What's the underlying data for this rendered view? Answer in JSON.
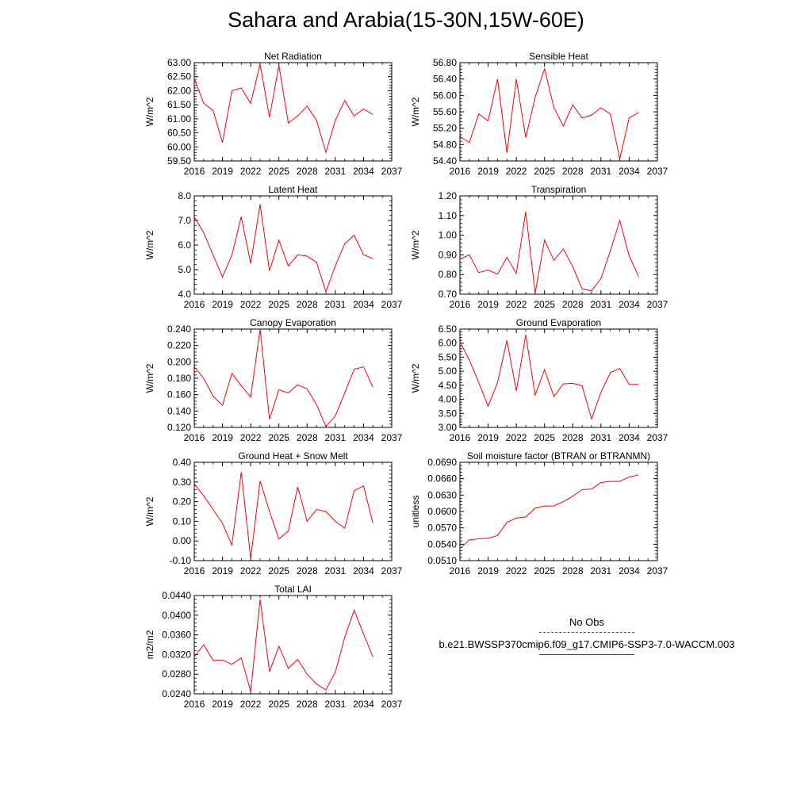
{
  "figure_title": "Sahara and Arabia(15-30N,15W-60E)",
  "legend": {
    "items": [
      {
        "label": "No Obs",
        "style": "dashed",
        "color": "#3b4ea8"
      },
      {
        "label": "b.e21.BWSSP370cmip6.f09_g17.CMIP6-SSP3-7.0-WACCM.003",
        "style": "solid",
        "color": "#ff0000"
      }
    ]
  },
  "chart_data": [
    {
      "type": "line",
      "title": "Net Radiation",
      "ylabel": "W/m^2",
      "xlim": [
        2016,
        2037
      ],
      "xticks": [
        "2016",
        "2019",
        "2022",
        "2025",
        "2028",
        "2031",
        "2034",
        "2037"
      ],
      "ylim": [
        59.5,
        63.0
      ],
      "yticks": [
        "59.50",
        "60.00",
        "60.50",
        "61.00",
        "61.50",
        "62.00",
        "62.50",
        "63.00"
      ],
      "x": [
        2016,
        2017,
        2018,
        2019,
        2020,
        2021,
        2022,
        2023,
        2024,
        2025,
        2026,
        2027,
        2028,
        2029,
        2030,
        2031,
        2032,
        2033,
        2034,
        2035
      ],
      "series": [
        {
          "color": "#ff0000",
          "values": [
            62.45,
            61.55,
            61.3,
            60.15,
            62.0,
            62.1,
            61.55,
            62.95,
            61.05,
            62.9,
            60.85,
            61.1,
            61.45,
            60.95,
            59.8,
            60.95,
            61.65,
            61.1,
            61.35,
            61.15
          ]
        }
      ]
    },
    {
      "type": "line",
      "title": "Sensible Heat",
      "ylabel": "W/m^2",
      "xlim": [
        2016,
        2037
      ],
      "xticks": [
        "2016",
        "2019",
        "2022",
        "2025",
        "2028",
        "2031",
        "2034",
        "2037"
      ],
      "ylim": [
        54.4,
        56.8
      ],
      "yticks": [
        "54.40",
        "54.80",
        "55.20",
        "55.60",
        "56.00",
        "56.40",
        "56.80"
      ],
      "x": [
        2016,
        2017,
        2018,
        2019,
        2020,
        2021,
        2022,
        2023,
        2024,
        2025,
        2026,
        2027,
        2028,
        2029,
        2030,
        2031,
        2032,
        2033,
        2034,
        2035
      ],
      "series": [
        {
          "color": "#ff0000",
          "values": [
            55.0,
            54.85,
            55.55,
            55.38,
            56.4,
            54.6,
            56.4,
            54.97,
            55.95,
            56.65,
            55.7,
            55.25,
            55.77,
            55.45,
            55.52,
            55.7,
            55.55,
            54.45,
            55.45,
            55.58
          ]
        }
      ]
    },
    {
      "type": "line",
      "title": "Latent Heat",
      "ylabel": "W/m^2",
      "xlim": [
        2016,
        2037
      ],
      "xticks": [
        "2016",
        "2019",
        "2022",
        "2025",
        "2028",
        "2031",
        "2034",
        "2037"
      ],
      "ylim": [
        4.0,
        8.0
      ],
      "yticks": [
        "4.0",
        "5.0",
        "6.0",
        "7.0",
        "8.0"
      ],
      "x": [
        2016,
        2017,
        2018,
        2019,
        2020,
        2021,
        2022,
        2023,
        2024,
        2025,
        2026,
        2027,
        2028,
        2029,
        2030,
        2031,
        2032,
        2033,
        2034,
        2035
      ],
      "series": [
        {
          "color": "#ff0000",
          "values": [
            7.15,
            6.5,
            5.6,
            4.7,
            5.6,
            7.15,
            5.25,
            7.65,
            4.95,
            6.2,
            5.15,
            5.6,
            5.55,
            5.3,
            4.1,
            5.15,
            6.05,
            6.4,
            5.6,
            5.45
          ]
        }
      ]
    },
    {
      "type": "line",
      "title": "Transpiration",
      "ylabel": "W/m^2",
      "xlim": [
        2016,
        2037
      ],
      "xticks": [
        "2016",
        "2019",
        "2022",
        "2025",
        "2028",
        "2031",
        "2034",
        "2037"
      ],
      "ylim": [
        0.7,
        1.2
      ],
      "yticks": [
        "0.70",
        "0.80",
        "0.90",
        "1.00",
        "1.10",
        "1.20"
      ],
      "x": [
        2016,
        2017,
        2018,
        2019,
        2020,
        2021,
        2022,
        2023,
        2024,
        2025,
        2026,
        2027,
        2028,
        2029,
        2030,
        2031,
        2032,
        2033,
        2034,
        2035
      ],
      "series": [
        {
          "color": "#ff0000",
          "values": [
            0.878,
            0.9,
            0.81,
            0.823,
            0.802,
            0.887,
            0.805,
            1.12,
            0.705,
            0.975,
            0.872,
            0.93,
            0.84,
            0.727,
            0.717,
            0.78,
            0.92,
            1.075,
            0.895,
            0.79
          ]
        }
      ]
    },
    {
      "type": "line",
      "title": "Canopy Evaporation",
      "ylabel": "W/m^2",
      "xlim": [
        2016,
        2037
      ],
      "xticks": [
        "2016",
        "2019",
        "2022",
        "2025",
        "2028",
        "2031",
        "2034",
        "2037"
      ],
      "ylim": [
        0.12,
        0.24
      ],
      "yticks": [
        "0.120",
        "0.140",
        "0.160",
        "0.180",
        "0.200",
        "0.220",
        "0.240"
      ],
      "x": [
        2016,
        2017,
        2018,
        2019,
        2020,
        2021,
        2022,
        2023,
        2024,
        2025,
        2026,
        2027,
        2028,
        2029,
        2030,
        2031,
        2032,
        2033,
        2034,
        2035
      ],
      "series": [
        {
          "color": "#ff0000",
          "values": [
            0.194,
            0.18,
            0.158,
            0.147,
            0.186,
            0.171,
            0.157,
            0.24,
            0.13,
            0.166,
            0.162,
            0.172,
            0.167,
            0.148,
            0.121,
            0.134,
            0.162,
            0.191,
            0.194,
            0.169
          ]
        }
      ]
    },
    {
      "type": "line",
      "title": "Ground Evaporation",
      "ylabel": "W/m^2",
      "xlim": [
        2016,
        2037
      ],
      "xticks": [
        "2016",
        "2019",
        "2022",
        "2025",
        "2028",
        "2031",
        "2034",
        "2037"
      ],
      "ylim": [
        3.0,
        6.5
      ],
      "yticks": [
        "3.00",
        "3.50",
        "4.00",
        "4.50",
        "5.00",
        "5.50",
        "6.00",
        "6.50"
      ],
      "x": [
        2016,
        2017,
        2018,
        2019,
        2020,
        2021,
        2022,
        2023,
        2024,
        2025,
        2026,
        2027,
        2028,
        2029,
        2030,
        2031,
        2032,
        2033,
        2034,
        2035
      ],
      "series": [
        {
          "color": "#ff0000",
          "values": [
            6.05,
            5.4,
            4.6,
            3.75,
            4.6,
            6.1,
            4.3,
            6.3,
            4.15,
            5.05,
            4.1,
            4.55,
            4.57,
            4.48,
            3.3,
            4.25,
            4.95,
            5.1,
            4.53,
            4.53
          ]
        }
      ]
    },
    {
      "type": "line",
      "title": "Ground Heat + Snow Melt",
      "ylabel": "W/m^2",
      "xlim": [
        2016,
        2037
      ],
      "xticks": [
        "2016",
        "2019",
        "2022",
        "2025",
        "2028",
        "2031",
        "2034",
        "2037"
      ],
      "ylim": [
        -0.1,
        0.4
      ],
      "yticks": [
        "-0.10",
        "0.00",
        "0.10",
        "0.20",
        "0.30",
        "0.40"
      ],
      "x": [
        2016,
        2017,
        2018,
        2019,
        2020,
        2021,
        2022,
        2023,
        2024,
        2025,
        2026,
        2027,
        2028,
        2029,
        2030,
        2031,
        2032,
        2033,
        2034,
        2035
      ],
      "series": [
        {
          "color": "#ff0000",
          "values": [
            0.29,
            0.23,
            0.16,
            0.09,
            -0.02,
            0.35,
            -0.09,
            0.305,
            0.15,
            0.01,
            0.05,
            0.275,
            0.1,
            0.16,
            0.15,
            0.1,
            0.065,
            0.255,
            0.28,
            0.09
          ]
        }
      ]
    },
    {
      "type": "line",
      "title": "Soil moisture factor (BTRAN or BTRANMN)",
      "ylabel": "unitless",
      "xlim": [
        2016,
        2037
      ],
      "xticks": [
        "2016",
        "2019",
        "2022",
        "2025",
        "2028",
        "2031",
        "2034",
        "2037"
      ],
      "ylim": [
        0.051,
        0.069
      ],
      "yticks": [
        "0.0510",
        "0.0540",
        "0.0570",
        "0.0600",
        "0.0630",
        "0.0660",
        "0.0690"
      ],
      "x": [
        2016,
        2017,
        2018,
        2019,
        2020,
        2021,
        2022,
        2023,
        2024,
        2025,
        2026,
        2027,
        2028,
        2029,
        2030,
        2031,
        2032,
        2033,
        2034,
        2035
      ],
      "series": [
        {
          "color": "#ff0000",
          "values": [
            0.0532,
            0.0548,
            0.055,
            0.0551,
            0.0556,
            0.058,
            0.0588,
            0.059,
            0.0606,
            0.061,
            0.061,
            0.0618,
            0.0628,
            0.064,
            0.0641,
            0.0653,
            0.0655,
            0.0655,
            0.0663,
            0.0667
          ]
        }
      ]
    },
    {
      "type": "line",
      "title": "Total LAI",
      "ylabel": "m2/m2",
      "xlim": [
        2016,
        2037
      ],
      "xticks": [
        "2016",
        "2019",
        "2022",
        "2025",
        "2028",
        "2031",
        "2034",
        "2037"
      ],
      "ylim": [
        0.024,
        0.044
      ],
      "yticks": [
        "0.0240",
        "0.0280",
        "0.0320",
        "0.0360",
        "0.0400",
        "0.0440"
      ],
      "x": [
        2016,
        2017,
        2018,
        2019,
        2020,
        2021,
        2022,
        2023,
        2024,
        2025,
        2026,
        2027,
        2028,
        2029,
        2030,
        2031,
        2032,
        2033,
        2034,
        2035
      ],
      "series": [
        {
          "color": "#ff0000",
          "values": [
            0.0315,
            0.034,
            0.0308,
            0.0309,
            0.03,
            0.0313,
            0.0245,
            0.0432,
            0.0285,
            0.0337,
            0.0292,
            0.031,
            0.028,
            0.026,
            0.0248,
            0.0284,
            0.0355,
            0.041,
            0.0362,
            0.0315
          ]
        }
      ]
    }
  ]
}
